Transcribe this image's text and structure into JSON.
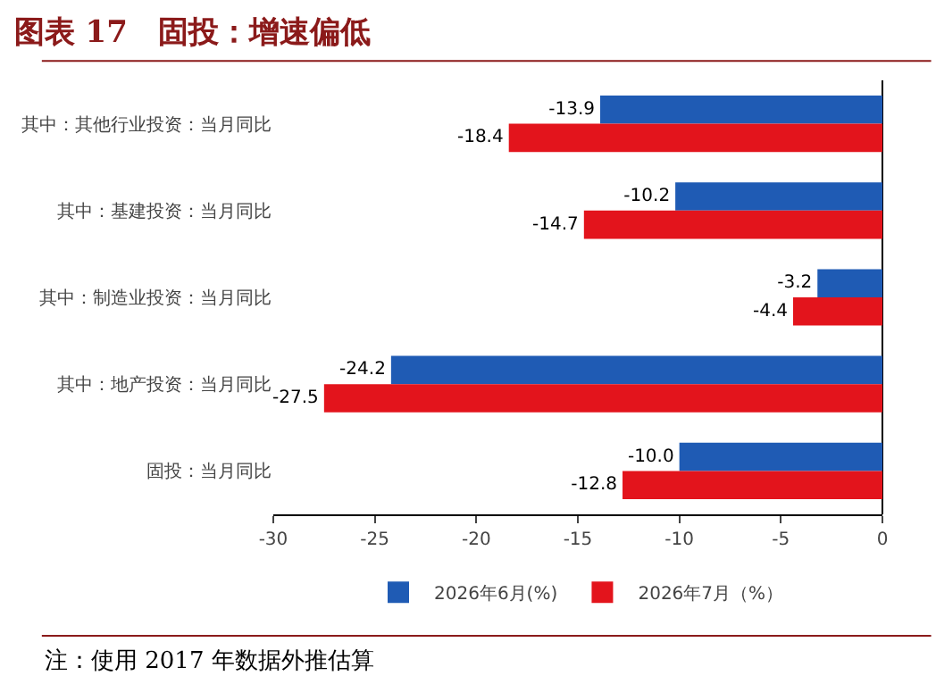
{
  "chart_data": {
    "type": "bar",
    "orientation": "horizontal",
    "title": "图表 17　固投：增速偏低",
    "categories": [
      "其中：其他行业投资：当月同比",
      "其中：基建投资：当月同比",
      "其中：制造业投资：当月同比",
      "其中：地产投资：当月同比",
      "固投：当月同比"
    ],
    "series": [
      {
        "name": "2026年6月(%)",
        "color": "#1f5bb4",
        "values": [
          -13.9,
          -10.2,
          -3.2,
          -24.2,
          -10.0
        ],
        "value_labels": [
          "-13.9",
          "-10.2",
          "-3.2",
          "-24.2",
          "-10.0"
        ]
      },
      {
        "name": "2026年7月（%）",
        "color": "#e3141c",
        "values": [
          -18.4,
          -14.7,
          -4.4,
          -27.5,
          -12.8
        ],
        "value_labels": [
          "-18.4",
          "-14.7",
          "-4.4",
          "-27.5",
          "-12.8"
        ]
      }
    ],
    "xlim": [
      -30,
      0
    ],
    "xticks": [
      -30,
      -25,
      -20,
      -15,
      -10,
      -5,
      0
    ],
    "grid": false,
    "legend": "bottom",
    "annotations": [
      "注：使用 2017 年数据外推估算"
    ]
  }
}
